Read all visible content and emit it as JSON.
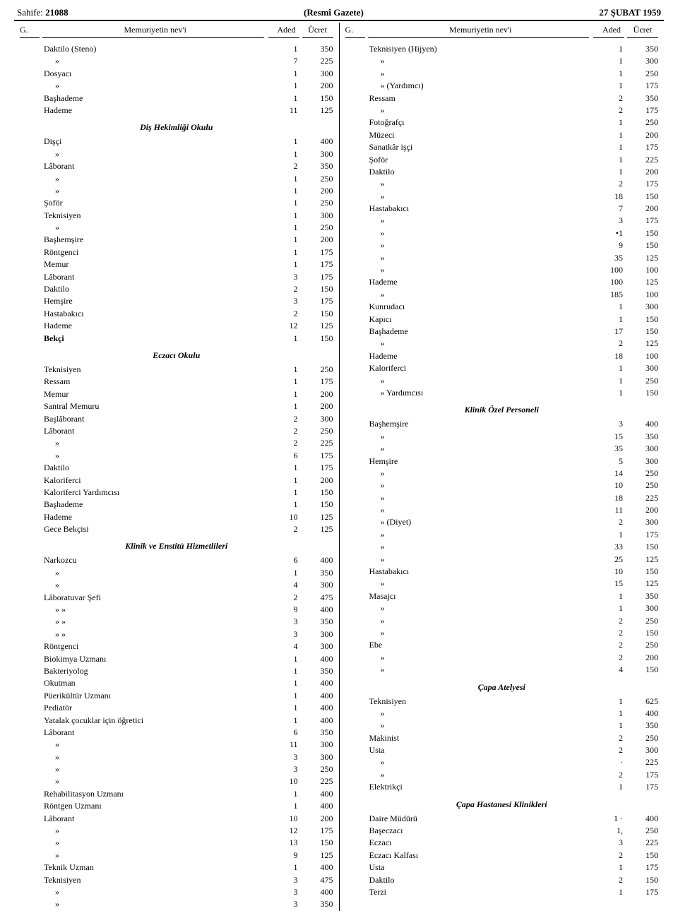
{
  "header": {
    "page_label": "Sahife:",
    "page_no": "21088",
    "center": "(Resmî Gazete)",
    "date": "27 ŞUBAT 1959"
  },
  "column_headers": {
    "g": "G.",
    "name": "Memuriyetin nev'i",
    "aded": "Aded",
    "ucret": "Ücret"
  },
  "left": [
    {
      "t": "row",
      "name": "Daktilo (Steno)",
      "a": "1",
      "u": "350"
    },
    {
      "t": "row",
      "name": "»",
      "indent": 1,
      "a": "7",
      "u": "225"
    },
    {
      "t": "row",
      "name": "Dosyacı",
      "a": "1",
      "u": "300"
    },
    {
      "t": "row",
      "name": "»",
      "indent": 1,
      "a": "1",
      "u": "200"
    },
    {
      "t": "row",
      "name": "Başhademe",
      "a": "1",
      "u": "150"
    },
    {
      "t": "row",
      "name": "Hademe",
      "a": "11",
      "u": "125"
    },
    {
      "t": "section",
      "name": "Diş Hekimliği Okulu"
    },
    {
      "t": "row",
      "name": "Dişçi",
      "a": "1",
      "u": "400"
    },
    {
      "t": "row",
      "name": "»",
      "indent": 1,
      "a": "1",
      "u": "300"
    },
    {
      "t": "row",
      "name": "Lâborant",
      "a": "2",
      "u": "350"
    },
    {
      "t": "row",
      "name": "»",
      "indent": 1,
      "a": "1",
      "u": "250"
    },
    {
      "t": "row",
      "name": "»",
      "indent": 1,
      "a": "1",
      "u": "200"
    },
    {
      "t": "row",
      "name": "Şoför",
      "a": "1",
      "u": "250"
    },
    {
      "t": "row",
      "name": "Teknisiyen",
      "a": "1",
      "u": "300"
    },
    {
      "t": "row",
      "name": "»",
      "indent": 1,
      "a": "1",
      "u": "250"
    },
    {
      "t": "row",
      "name": "Başhemşire",
      "a": "1",
      "u": "200"
    },
    {
      "t": "row",
      "name": "Röntgenci",
      "a": "1",
      "u": "175"
    },
    {
      "t": "row",
      "name": "Memur",
      "a": "1",
      "u": "175"
    },
    {
      "t": "row",
      "name": "Lâborant",
      "a": "3",
      "u": "175"
    },
    {
      "t": "row",
      "name": "Daktilo",
      "a": "2",
      "u": "150"
    },
    {
      "t": "row",
      "name": "Hemşire",
      "a": "3",
      "u": "175"
    },
    {
      "t": "row",
      "name": "Hastabakıcı",
      "a": "2",
      "u": "150"
    },
    {
      "t": "row",
      "name": "Hademe",
      "a": "12",
      "u": "125"
    },
    {
      "t": "row",
      "name": "Bekçi",
      "a": "1",
      "u": "150",
      "bold": true
    },
    {
      "t": "section",
      "name": "Eczacı Okulu"
    },
    {
      "t": "row",
      "name": "Teknisiyen",
      "a": "1",
      "u": "250"
    },
    {
      "t": "row",
      "name": "Ressam",
      "a": "1",
      "u": "175"
    },
    {
      "t": "row",
      "name": "Memur",
      "a": "1",
      "u": "200"
    },
    {
      "t": "row",
      "name": "Santral Memuru",
      "a": "1",
      "u": "200"
    },
    {
      "t": "row",
      "name": "Başlâborant",
      "a": "2",
      "u": "300"
    },
    {
      "t": "row",
      "name": "Lâborant",
      "a": "2",
      "u": "250"
    },
    {
      "t": "row",
      "name": "»",
      "indent": 1,
      "a": "2",
      "u": "225"
    },
    {
      "t": "row",
      "name": "»",
      "indent": 1,
      "a": "6",
      "u": "175"
    },
    {
      "t": "row",
      "name": "Daktilo",
      "a": "1",
      "u": "175"
    },
    {
      "t": "row",
      "name": "Kaloriferci",
      "a": "1",
      "u": "200"
    },
    {
      "t": "row",
      "name": "Kaloriferci Yardımcısı",
      "a": "1",
      "u": "150"
    },
    {
      "t": "row",
      "name": "Başhademe",
      "a": "1",
      "u": "150"
    },
    {
      "t": "row",
      "name": "Hademe",
      "a": "10",
      "u": "125"
    },
    {
      "t": "row",
      "name": "Gece Bekçisi",
      "a": "2",
      "u": "125"
    },
    {
      "t": "section",
      "name": "Klinik ve Enstitü Hizmetlileri"
    },
    {
      "t": "row",
      "name": "Narkozcu",
      "a": "6",
      "u": "400"
    },
    {
      "t": "row",
      "name": "»",
      "indent": 1,
      "a": "1",
      "u": "350"
    },
    {
      "t": "row",
      "name": "»",
      "indent": 1,
      "a": "4",
      "u": "300"
    },
    {
      "t": "row",
      "name": "Lâboratuvar Şefi",
      "a": "2",
      "u": "475"
    },
    {
      "t": "row",
      "name": "»        »",
      "indent": 1,
      "a": "9",
      "u": "400"
    },
    {
      "t": "row",
      "name": "»        »",
      "indent": 1,
      "a": "3",
      "u": "350"
    },
    {
      "t": "row",
      "name": "»        »",
      "indent": 1,
      "a": "3",
      "u": "300"
    },
    {
      "t": "row",
      "name": "Röntgenci",
      "a": "4",
      "u": "300"
    },
    {
      "t": "row",
      "name": "Biokimya Uzmanı",
      "a": "1",
      "u": "400"
    },
    {
      "t": "row",
      "name": "Bakteriyolog",
      "a": "1",
      "u": "350"
    },
    {
      "t": "row",
      "name": "Okutman",
      "a": "1",
      "u": "400"
    },
    {
      "t": "row",
      "name": "Püerikültür Uzmanı",
      "a": "1",
      "u": "400"
    },
    {
      "t": "row",
      "name": "Pediatör",
      "a": "1",
      "u": "400"
    },
    {
      "t": "row",
      "name": "Yatalak çocuklar için öğretici",
      "a": "1",
      "u": "400"
    },
    {
      "t": "row",
      "name": "Lâborant",
      "a": "6",
      "u": "350"
    },
    {
      "t": "row",
      "name": "»",
      "indent": 1,
      "a": "11",
      "u": "300"
    },
    {
      "t": "row",
      "name": "»",
      "indent": 1,
      "a": "3",
      "u": "300"
    },
    {
      "t": "row",
      "name": "»",
      "indent": 1,
      "a": "3",
      "u": "250"
    },
    {
      "t": "row",
      "name": "»",
      "indent": 1,
      "a": "10",
      "u": "225"
    },
    {
      "t": "row",
      "name": "Rehabilitasyon Uzmanı",
      "a": "1",
      "u": "400"
    },
    {
      "t": "row",
      "name": "Röntgen Uzmanı",
      "a": "1",
      "u": "400"
    },
    {
      "t": "row",
      "name": "Lâborant",
      "a": "10",
      "u": "200"
    },
    {
      "t": "row",
      "name": "»",
      "indent": 1,
      "a": "12",
      "u": "175"
    },
    {
      "t": "row",
      "name": "»",
      "indent": 1,
      "a": "13",
      "u": "150"
    },
    {
      "t": "row",
      "name": "»",
      "indent": 1,
      "a": "9",
      "u": "125"
    },
    {
      "t": "row",
      "name": "Teknik Uzman",
      "a": "1",
      "u": "400"
    },
    {
      "t": "row",
      "name": "Teknisiyen",
      "a": "3",
      "u": "475"
    },
    {
      "t": "row",
      "name": "»",
      "indent": 1,
      "a": "3",
      "u": "400"
    },
    {
      "t": "row",
      "name": "»",
      "indent": 1,
      "a": "3",
      "u": "350"
    }
  ],
  "right": [
    {
      "t": "row",
      "name": "Teknisiyen (Hijyen)",
      "a": "1",
      "u": "350"
    },
    {
      "t": "row",
      "name": "»",
      "indent": 1,
      "a": "1",
      "u": "300"
    },
    {
      "t": "row",
      "name": "»",
      "indent": 1,
      "a": "1",
      "u": "250"
    },
    {
      "t": "row",
      "name": "»    (Yardımcı)",
      "indent": 1,
      "a": "1",
      "u": "175"
    },
    {
      "t": "row",
      "name": "Ressam",
      "a": "2",
      "u": "350"
    },
    {
      "t": "row",
      "name": "»",
      "indent": 1,
      "a": "2",
      "u": "175"
    },
    {
      "t": "row",
      "name": "Fotoğrafçı",
      "a": "1",
      "u": "250"
    },
    {
      "t": "row",
      "name": "Müzeci",
      "a": "1",
      "u": "200"
    },
    {
      "t": "row",
      "name": "Sanatkâr işçi",
      "a": "1",
      "u": "175"
    },
    {
      "t": "row",
      "name": "Şoför",
      "a": "1",
      "u": "225"
    },
    {
      "t": "row",
      "name": "Daktilo",
      "a": "1",
      "u": "200"
    },
    {
      "t": "row",
      "name": "»",
      "indent": 1,
      "a": "2",
      "u": "175"
    },
    {
      "t": "row",
      "name": "»",
      "indent": 1,
      "a": "18",
      "u": "150"
    },
    {
      "t": "row",
      "name": "Hastabakıcı",
      "a": "7",
      "u": "200"
    },
    {
      "t": "row",
      "name": "»",
      "indent": 1,
      "a": "3",
      "u": "175"
    },
    {
      "t": "row",
      "name": "»",
      "indent": 1,
      "a": "•1",
      "u": "150"
    },
    {
      "t": "row",
      "name": "»",
      "indent": 1,
      "a": "9",
      "u": "150"
    },
    {
      "t": "row",
      "name": "»",
      "indent": 1,
      "a": "35",
      "u": "125"
    },
    {
      "t": "row",
      "name": "»",
      "indent": 1,
      "a": "100",
      "u": "100"
    },
    {
      "t": "row",
      "name": "Hademe",
      "a": "100",
      "u": "125"
    },
    {
      "t": "row",
      "name": "»",
      "indent": 1,
      "a": "185",
      "u": "100"
    },
    {
      "t": "row",
      "name": "Kunrudacı",
      "a": "1",
      "u": "300"
    },
    {
      "t": "row",
      "name": "Kapıcı",
      "a": "1",
      "u": "150"
    },
    {
      "t": "row",
      "name": "Başhademe",
      "a": "17",
      "u": "150"
    },
    {
      "t": "row",
      "name": "»",
      "indent": 1,
      "a": "2",
      "u": "125"
    },
    {
      "t": "row",
      "name": "Hademe",
      "a": "18",
      "u": "100"
    },
    {
      "t": "row",
      "name": "Kaloriferci",
      "a": "1",
      "u": "300"
    },
    {
      "t": "row",
      "name": "»",
      "indent": 1,
      "a": "1",
      "u": "250"
    },
    {
      "t": "row",
      "name": "»     Yardımcısı",
      "indent": 1,
      "a": "1",
      "u": "150"
    },
    {
      "t": "section",
      "name": "Klinik Özel Personeli"
    },
    {
      "t": "row",
      "name": "Başhemşire",
      "a": "3",
      "u": "400"
    },
    {
      "t": "row",
      "name": "»",
      "indent": 1,
      "a": "15",
      "u": "350"
    },
    {
      "t": "row",
      "name": "»",
      "indent": 1,
      "a": "35",
      "u": "300"
    },
    {
      "t": "row",
      "name": "Hemşire",
      "a": "5",
      "u": "300"
    },
    {
      "t": "row",
      "name": "»",
      "indent": 1,
      "a": "14",
      "u": "250"
    },
    {
      "t": "row",
      "name": "»",
      "indent": 1,
      "a": "10",
      "u": "250"
    },
    {
      "t": "row",
      "name": "»",
      "indent": 1,
      "a": "18",
      "u": "225"
    },
    {
      "t": "row",
      "name": "»",
      "indent": 1,
      "a": "11",
      "u": "200"
    },
    {
      "t": "row",
      "name": "»   (Diyet)",
      "indent": 1,
      "a": "2",
      "u": "300"
    },
    {
      "t": "row",
      "name": "»",
      "indent": 1,
      "a": "1",
      "u": "175"
    },
    {
      "t": "row",
      "name": "»",
      "indent": 1,
      "a": "33",
      "u": "150"
    },
    {
      "t": "row",
      "name": "»",
      "indent": 1,
      "a": "25",
      "u": "125"
    },
    {
      "t": "row",
      "name": "Hastabakıcı",
      "a": "10",
      "u": "150"
    },
    {
      "t": "row",
      "name": "»",
      "indent": 1,
      "a": "15",
      "u": "125"
    },
    {
      "t": "row",
      "name": "Masajcı",
      "a": "1",
      "u": "350"
    },
    {
      "t": "row",
      "name": "»",
      "indent": 1,
      "a": "1",
      "u": "300"
    },
    {
      "t": "row",
      "name": "»",
      "indent": 1,
      "a": "2",
      "u": "250"
    },
    {
      "t": "row",
      "name": "»",
      "indent": 1,
      "a": "2",
      "u": "150"
    },
    {
      "t": "row",
      "name": "Ebe",
      "a": "2",
      "u": "250"
    },
    {
      "t": "row",
      "name": "»",
      "indent": 1,
      "a": "2",
      "u": "200"
    },
    {
      "t": "row",
      "name": "»",
      "indent": 1,
      "a": "4",
      "u": "150"
    },
    {
      "t": "section",
      "name": "Çapa Atelyesi"
    },
    {
      "t": "row",
      "name": "Teknisiyen",
      "a": "1",
      "u": "625"
    },
    {
      "t": "row",
      "name": "»",
      "indent": 1,
      "a": "1",
      "u": "400"
    },
    {
      "t": "row",
      "name": "»",
      "indent": 1,
      "a": "1",
      "u": "350"
    },
    {
      "t": "row",
      "name": "Makinist",
      "a": "2",
      "u": "250"
    },
    {
      "t": "row",
      "name": "Usta",
      "a": "2",
      "u": "300"
    },
    {
      "t": "row",
      "name": "»",
      "indent": 1,
      "a": "·",
      "u": "225"
    },
    {
      "t": "row",
      "name": "»",
      "indent": 1,
      "a": "2",
      "u": "175"
    },
    {
      "t": "row",
      "name": "Elektrikçi",
      "a": "1",
      "u": "175"
    },
    {
      "t": "section",
      "name": "Çapa Hastanesi Klinikleri"
    },
    {
      "t": "row",
      "name": "Daire Müdürü",
      "a": "1 ·",
      "u": "400"
    },
    {
      "t": "row",
      "name": "Başeczacı",
      "a": "1,",
      "u": "250"
    },
    {
      "t": "row",
      "name": "Eczacı",
      "a": "3",
      "u": "225"
    },
    {
      "t": "row",
      "name": "Eczacı Kalfası",
      "a": "2",
      "u": "150"
    },
    {
      "t": "row",
      "name": "Usta",
      "a": "1",
      "u": "175"
    },
    {
      "t": "row",
      "name": "Daktilo",
      "a": "2",
      "u": "150"
    },
    {
      "t": "row",
      "name": "Terzi",
      "a": "1",
      "u": "175"
    }
  ]
}
